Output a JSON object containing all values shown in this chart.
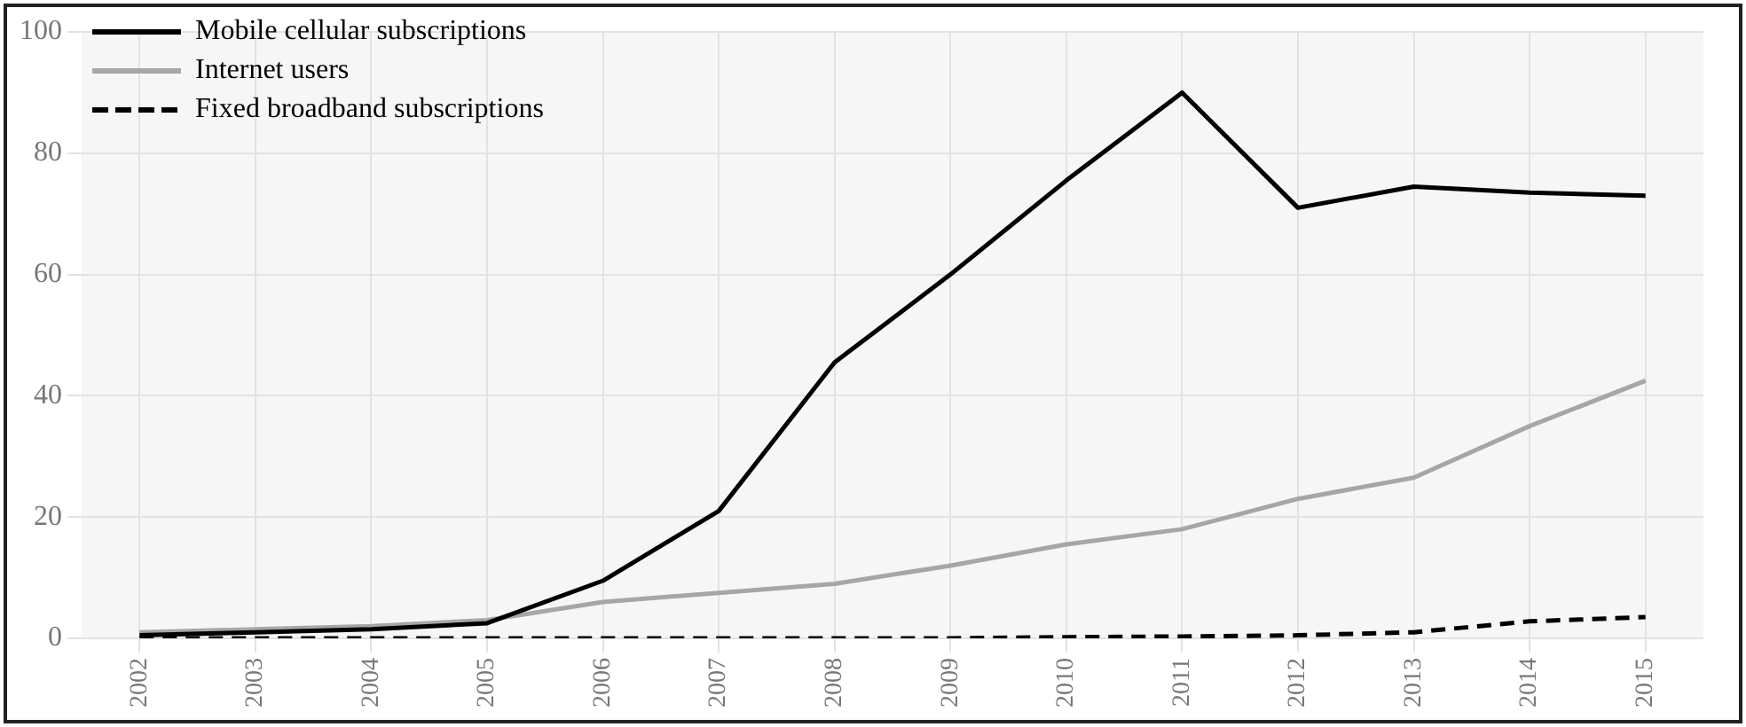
{
  "chart_data": {
    "type": "line",
    "categories": [
      "2002",
      "2003",
      "2004",
      "2005",
      "2006",
      "2007",
      "2008",
      "2009",
      "2010",
      "2011",
      "2012",
      "2013",
      "2014",
      "2015"
    ],
    "series": [
      {
        "name": "Mobile cellular subscriptions",
        "color": "#000000",
        "line_style": "solid",
        "values": [
          0.5,
          1,
          1.5,
          2.5,
          9.5,
          21,
          45.5,
          60,
          75.5,
          90,
          71,
          74.5,
          73.5,
          73
        ]
      },
      {
        "name": "Internet users",
        "color": "#a6a6a6",
        "line_style": "solid",
        "values": [
          1,
          1.5,
          2,
          3,
          6,
          7.5,
          9,
          12,
          15.5,
          18,
          23,
          26.5,
          35,
          42.5
        ]
      },
      {
        "name": "Fixed broadband subscriptions",
        "color": "#000000",
        "line_style": "dashed",
        "values": [
          0,
          0,
          0,
          0,
          0,
          0,
          0,
          0,
          0.2,
          0.3,
          0.5,
          1,
          2.8,
          3.5
        ]
      }
    ],
    "ylim": [
      0,
      100
    ],
    "yticks": [
      0,
      20,
      40,
      60,
      80,
      100
    ],
    "grid": true,
    "legend": "top left",
    "marker": "none"
  }
}
